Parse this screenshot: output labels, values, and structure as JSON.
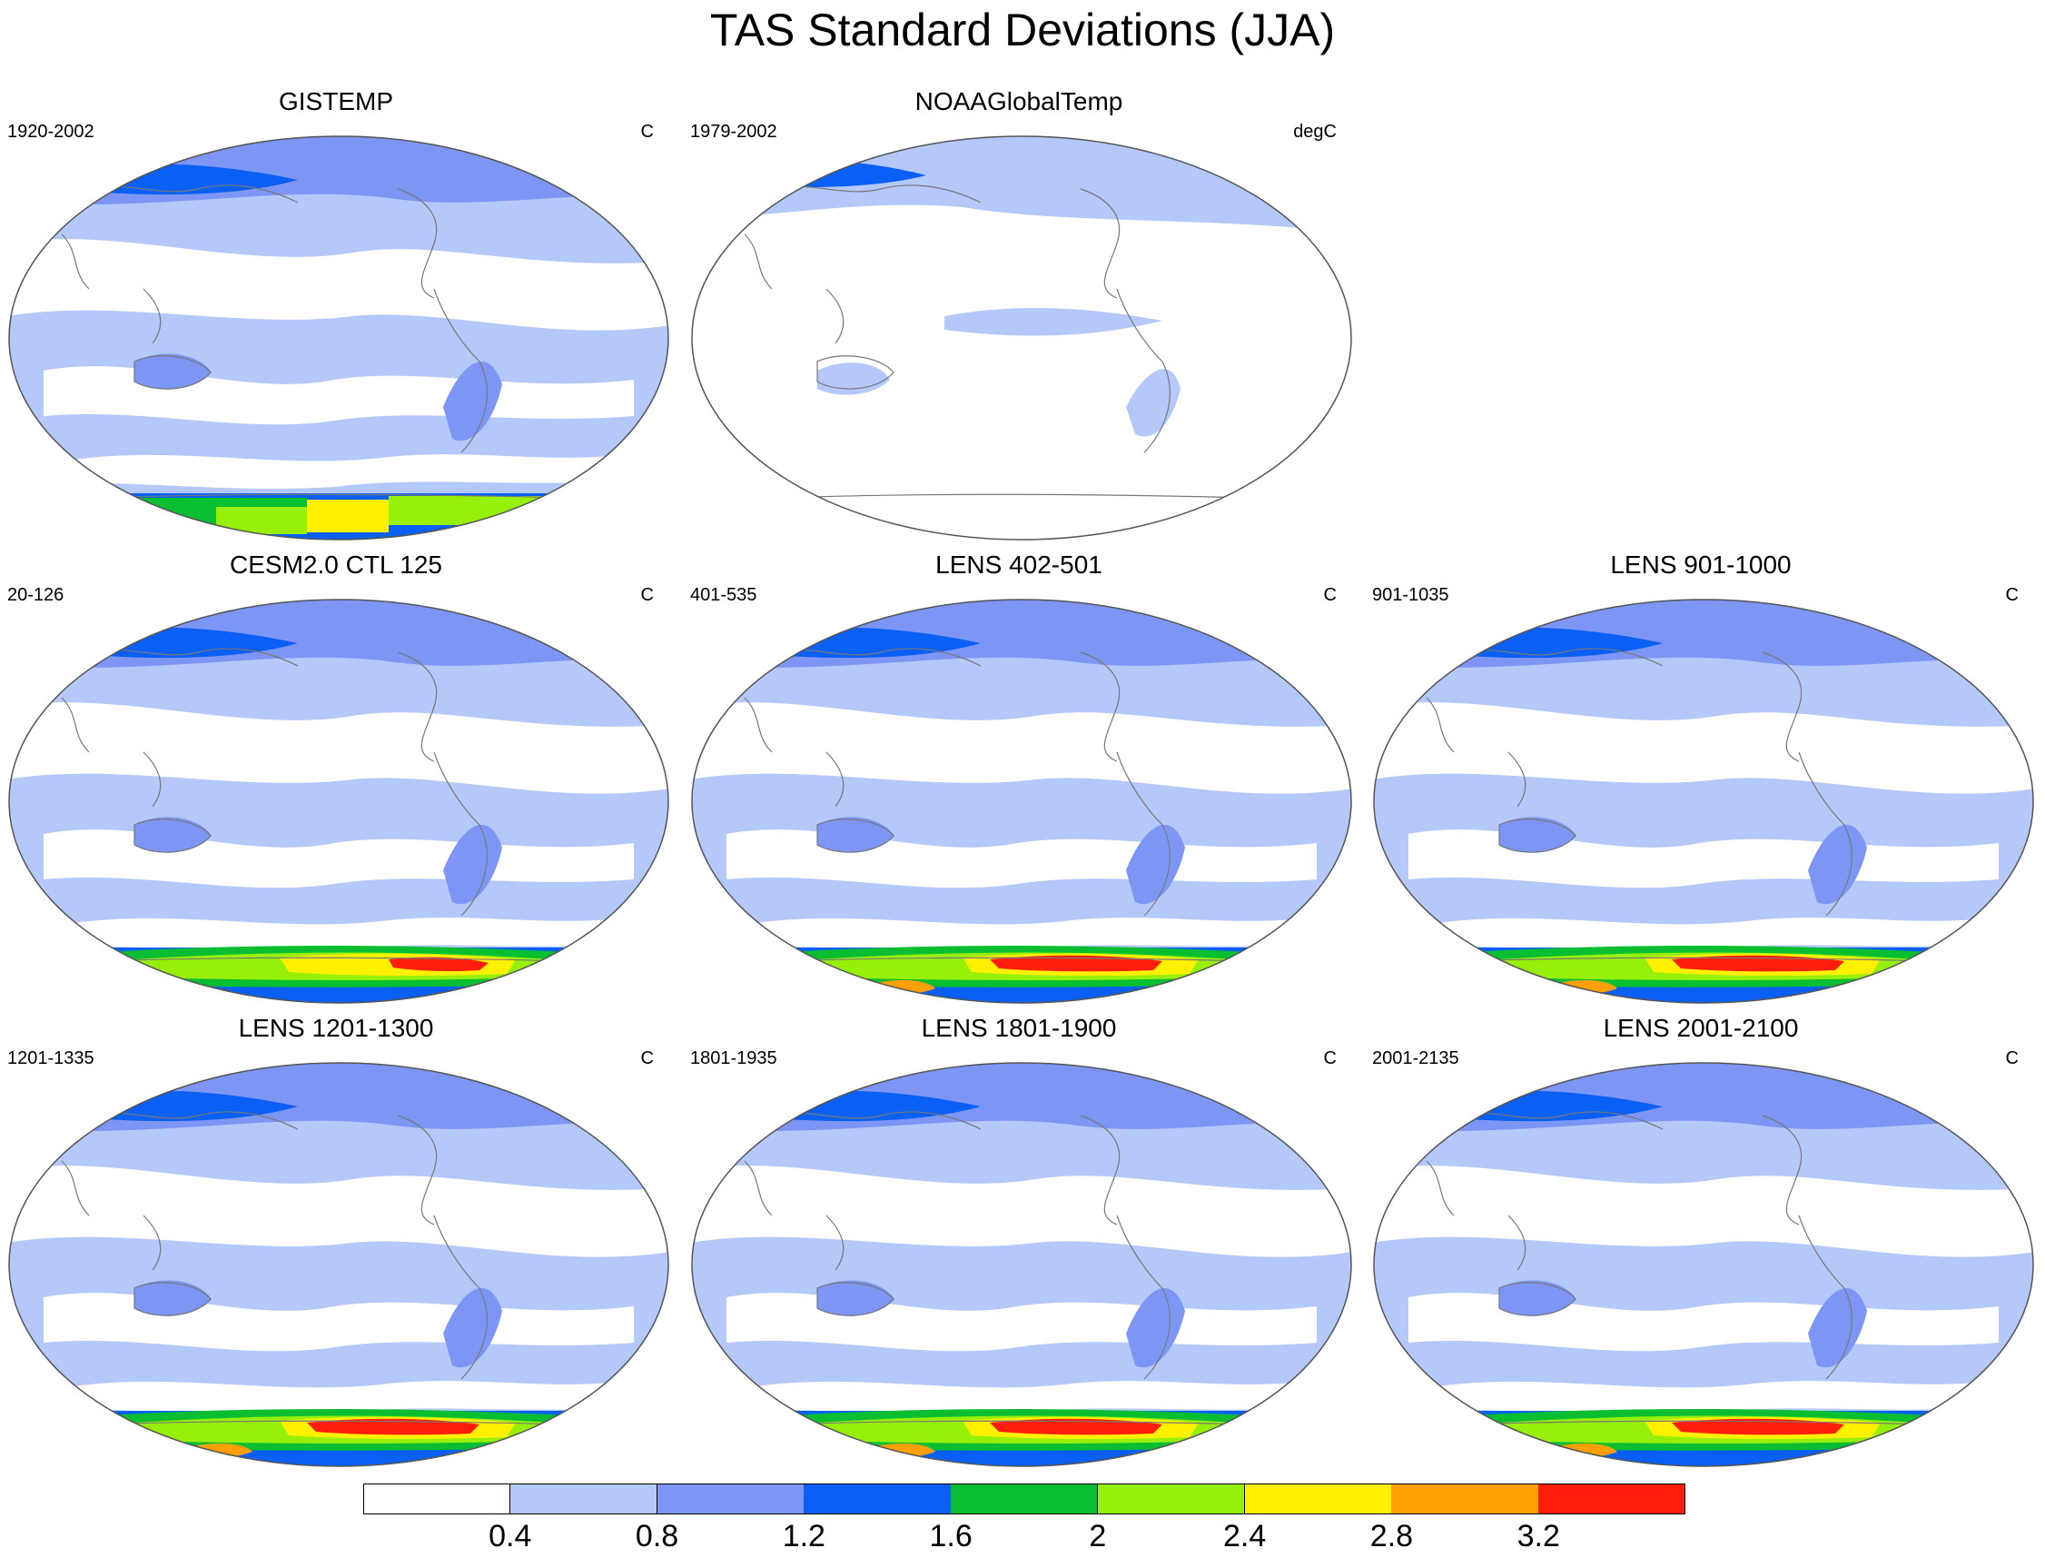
{
  "figure_title": "TAS Standard Deviations (JJA)",
  "panels": [
    {
      "title": "GISTEMP",
      "left_label": "1920-2002",
      "right_label": "C",
      "variant": "obs1"
    },
    {
      "title": "NOAAGlobalTemp",
      "left_label": "1979-2002",
      "right_label": "degC",
      "variant": "obs2"
    },
    {
      "title": "CESM2.0 CTL 125",
      "left_label": "20-126",
      "right_label": "C",
      "variant": "model1"
    },
    {
      "title": "LENS 402-501",
      "left_label": "401-535",
      "right_label": "C",
      "variant": "model2"
    },
    {
      "title": "LENS 901-1000",
      "left_label": "901-1035",
      "right_label": "C",
      "variant": "model2"
    },
    {
      "title": "LENS 1201-1300",
      "left_label": "1201-1335",
      "right_label": "C",
      "variant": "model2"
    },
    {
      "title": "LENS 1801-1900",
      "left_label": "1801-1935",
      "right_label": "C",
      "variant": "model2"
    },
    {
      "title": "LENS 2001-2100",
      "left_label": "2001-2135",
      "right_label": "C",
      "variant": "model2"
    }
  ],
  "colorbar": {
    "labels": [
      "0.4",
      "0.8",
      "1.2",
      "1.6",
      "2",
      "2.4",
      "2.8",
      "3.2"
    ],
    "colors": [
      "#ffffff",
      "#b4c8fa",
      "#7d96f5",
      "#0a5ff5",
      "#0abe32",
      "#96f00a",
      "#fff000",
      "#ffa000",
      "#ff1e0a"
    ]
  },
  "palette": {
    "land_line": "#777777",
    "frame": "#555555"
  }
}
